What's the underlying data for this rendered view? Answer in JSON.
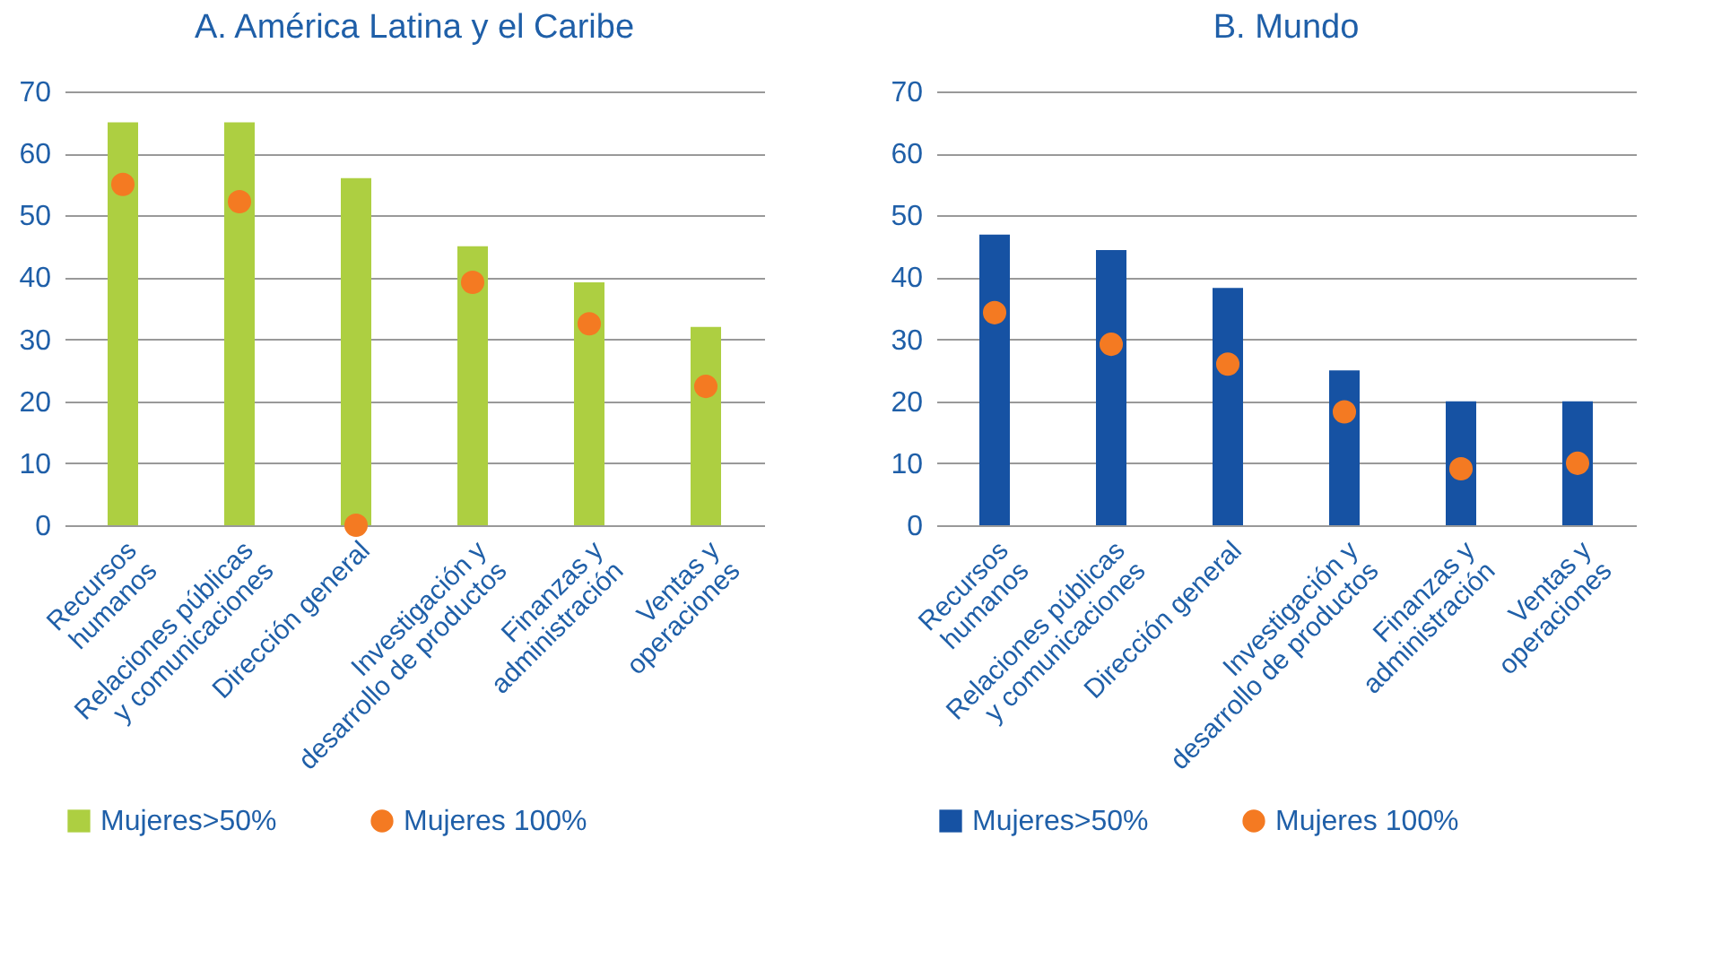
{
  "chart_data": [
    {
      "type": "bar",
      "title": "A. América Latina y el Caribe",
      "categories": [
        "Recursos\nhumanos",
        "Relaciones públicas\ny comunicaciones",
        "Dirección general",
        "Investigación y\ndesarrollo de productos",
        "Finanzas y\nadministración",
        "Ventas y\noperaciones"
      ],
      "series": [
        {
          "name": "Mujeres>50%",
          "type": "bar",
          "color": "#adcf41",
          "values": [
            65,
            65,
            56,
            45,
            39.2,
            32
          ]
        },
        {
          "name": "Mujeres 100%",
          "type": "scatter",
          "color": "#f47a22",
          "x": [
            "Recursos\nhumanos",
            "Relaciones públicas\ny comunicaciones",
            "Dirección general",
            "Investigación y\ndesarrollo de productos",
            "Finanzas y\nadministración",
            "Ventas y\noperaciones"
          ],
          "values": [
            55,
            52.2,
            0,
            39.2,
            32.5,
            22.4
          ]
        }
      ],
      "ylim": [
        0,
        70
      ],
      "yticks": [
        0,
        10,
        20,
        30,
        40,
        50,
        60,
        70
      ],
      "grid": "y",
      "legend": "bottom",
      "marker": "circle"
    },
    {
      "type": "bar",
      "title": "B. Mundo",
      "categories": [
        "Recursos\nhumanos",
        "Relaciones públicas\ny comunicaciones",
        "Dirección general",
        "Investigación y\ndesarrollo de productos",
        "Finanzas y\nadministración",
        "Ventas y\noperaciones"
      ],
      "series": [
        {
          "name": "Mujeres>50%",
          "type": "bar",
          "color": "#1652a3",
          "values": [
            46.9,
            44.4,
            38.3,
            25,
            20,
            20
          ]
        },
        {
          "name": "Mujeres 100%",
          "type": "scatter",
          "color": "#f47a22",
          "x": [
            "Recursos\nhumanos",
            "Relaciones públicas\ny comunicaciones",
            "Dirección general",
            "Investigación y\ndesarrollo de productos",
            "Finanzas y\nadministración",
            "Ventas y\noperaciones"
          ],
          "values": [
            34.3,
            29.2,
            26,
            18.3,
            9.1,
            10
          ]
        }
      ],
      "ylim": [
        0,
        70
      ],
      "yticks": [
        0,
        10,
        20,
        30,
        40,
        50,
        60,
        70
      ],
      "grid": "y",
      "legend": "bottom",
      "marker": "circle"
    }
  ]
}
